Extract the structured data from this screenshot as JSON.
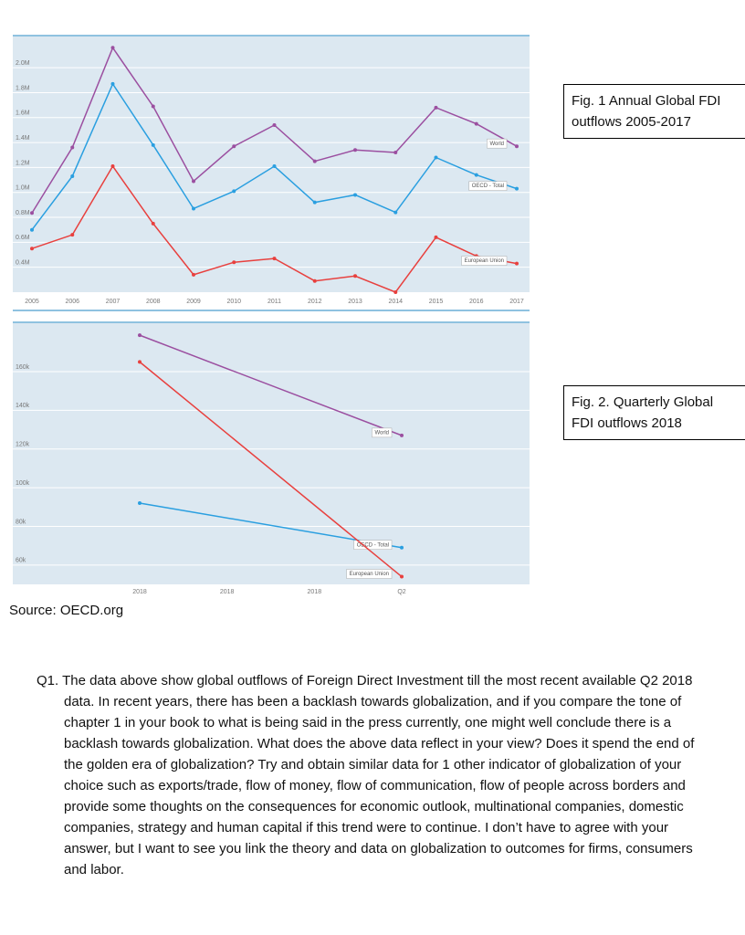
{
  "chart_data": [
    {
      "type": "line",
      "categories": [
        "2005",
        "2006",
        "2007",
        "2008",
        "2009",
        "2010",
        "2011",
        "2012",
        "2013",
        "2014",
        "2015",
        "2016",
        "2017"
      ],
      "series": [
        {
          "name": "World",
          "color": "#9b4fa0",
          "values": [
            835000,
            1360000,
            2160000,
            1690000,
            1090000,
            1370000,
            1540000,
            1250000,
            1340000,
            1320000,
            1680000,
            1550000,
            1370000
          ]
        },
        {
          "name": "OECD - Total",
          "color": "#2a9fe0",
          "values": [
            700000,
            1130000,
            1870000,
            1380000,
            870000,
            1010000,
            1210000,
            920000,
            980000,
            840000,
            1280000,
            1140000,
            1030000
          ]
        },
        {
          "name": "European Union",
          "color": "#e8403e",
          "values": [
            550000,
            660000,
            1210000,
            750000,
            340000,
            440000,
            470000,
            290000,
            330000,
            200000,
            640000,
            490000,
            430000
          ]
        }
      ],
      "ylim": [
        200000,
        2250000
      ],
      "yticks": [
        {
          "value": 400000,
          "label": "0.4M"
        },
        {
          "value": 600000,
          "label": "0.6M"
        },
        {
          "value": 800000,
          "label": "0.8M"
        },
        {
          "value": 1000000,
          "label": "1.0M"
        },
        {
          "value": 1200000,
          "label": "1.2M"
        },
        {
          "value": 1400000,
          "label": "1.4M"
        },
        {
          "value": 1600000,
          "label": "1.6M"
        },
        {
          "value": 1800000,
          "label": "1.8M"
        },
        {
          "value": 2000000,
          "label": "2.0M"
        }
      ],
      "grid": true
    },
    {
      "type": "line",
      "categories": [
        "2018",
        "2018",
        "2018",
        "Q2"
      ],
      "series": [
        {
          "name": "World",
          "color": "#9b4fa0",
          "values": [
            178800,
            null,
            null,
            127000
          ]
        },
        {
          "name": "OECD - Total",
          "color": "#2a9fe0",
          "values": [
            92000,
            null,
            null,
            69000
          ]
        },
        {
          "name": "European Union",
          "color": "#e8403e",
          "values": [
            165000,
            null,
            null,
            54000
          ]
        }
      ],
      "ylim": [
        50000,
        185000
      ],
      "yticks": [
        {
          "value": 60000,
          "label": "60k"
        },
        {
          "value": 80000,
          "label": "80k"
        },
        {
          "value": 100000,
          "label": "100k"
        },
        {
          "value": 120000,
          "label": "120k"
        },
        {
          "value": 140000,
          "label": "140k"
        },
        {
          "value": 160000,
          "label": "160k"
        }
      ],
      "grid": true
    }
  ],
  "captions": [
    "Fig. 1 Annual Global FDI outflows 2005-2017",
    "Fig. 2. Quarterly Global FDI outflows 2018"
  ],
  "source": "Source: OECD.org",
  "question": "Q1. The data above show global outflows of Foreign Direct Investment till the most recent available Q2 2018 data.  In recent years, there has been a backlash towards globalization, and if you compare the tone of chapter 1 in your book to what is being said in the press currently, one might well conclude there is a backlash towards globalization.  What does the above data reflect in your view? Does it spend the end of the golden era of globalization?  Try and obtain similar data for 1 other indicator of globalization of your choice such as exports/trade, flow of money, flow of communication, flow of people across borders and provide some thoughts on the consequences for economic outlook, multinational companies, domestic companies, strategy and human capital if this trend were to continue.  I don’t have to agree with your answer, but I want to see you link the theory and data on globalization to outcomes for firms, consumers and labor."
}
